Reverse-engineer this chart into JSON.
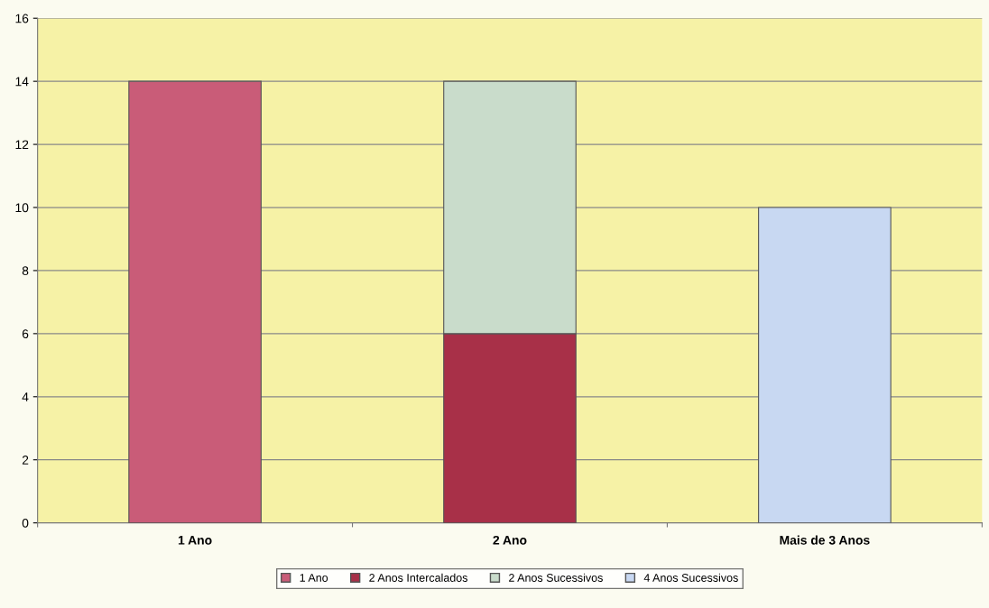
{
  "chart_data": {
    "type": "bar",
    "stacked": true,
    "categories": [
      "1 Ano",
      "2 Ano",
      "Mais de 3 Anos"
    ],
    "series": [
      {
        "name": "1 Ano",
        "color": "#c95c78",
        "values": [
          14,
          null,
          null
        ]
      },
      {
        "name": "2 Anos Intercalados",
        "color": "#a83048",
        "values": [
          null,
          6,
          null
        ]
      },
      {
        "name": "2 Anos Sucessivos",
        "color": "#c9dccb",
        "values": [
          null,
          8,
          null
        ]
      },
      {
        "name": "4 Anos Sucessivos",
        "color": "#c8d8f2",
        "values": [
          null,
          null,
          10
        ]
      }
    ],
    "ylim": [
      0,
      16
    ],
    "yticks": [
      0,
      2,
      4,
      6,
      8,
      10,
      12,
      14,
      16
    ],
    "grid": "y",
    "legend": "bottom"
  }
}
